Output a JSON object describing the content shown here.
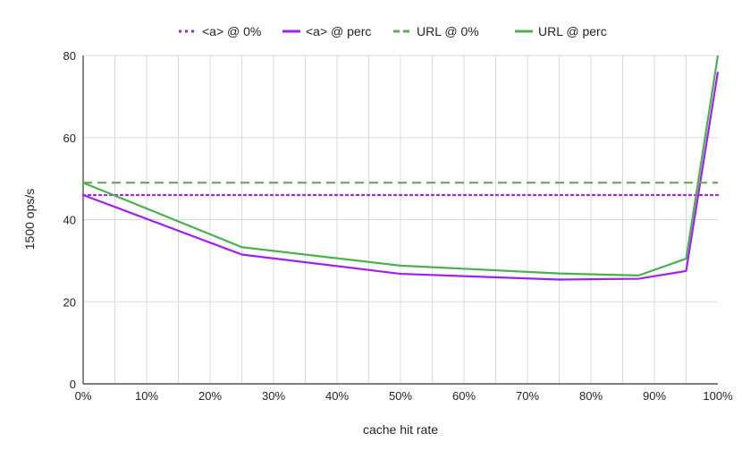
{
  "chart_data": {
    "type": "line",
    "title": "",
    "xlabel": "cache hit rate",
    "ylabel": "1500 ops/s",
    "xlim": [
      0,
      100
    ],
    "ylim": [
      0,
      80
    ],
    "x_ticks": [
      0,
      10,
      20,
      30,
      40,
      50,
      60,
      70,
      80,
      90,
      100
    ],
    "x_tick_labels": [
      "0%",
      "10%",
      "20%",
      "30%",
      "40%",
      "50%",
      "60%",
      "70%",
      "80%",
      "90%",
      "100%"
    ],
    "y_ticks": [
      0,
      20,
      40,
      60,
      80
    ],
    "y_tick_labels": [
      "0",
      "20",
      "40",
      "60",
      "80"
    ],
    "grid": true,
    "legend_position": "top",
    "series": [
      {
        "name": "<a> @ 0%",
        "color": "#a020f0",
        "style": "dotted",
        "x": [
          0,
          100
        ],
        "y": [
          46,
          46
        ]
      },
      {
        "name": "<a> @ perc",
        "color": "#a020f0",
        "style": "solid",
        "x": [
          0,
          25,
          50,
          75,
          87.5,
          95,
          100
        ],
        "y": [
          46,
          31.5,
          26.8,
          25.4,
          25.6,
          27.5,
          76
        ]
      },
      {
        "name": "URL @ 0%",
        "color": "#6aa84f",
        "style": "dashed",
        "x": [
          0,
          100
        ],
        "y": [
          49,
          49
        ]
      },
      {
        "name": "URL @ perc",
        "color": "#4caf50",
        "style": "solid",
        "x": [
          0,
          25,
          50,
          75,
          87.5,
          95,
          100
        ],
        "y": [
          49,
          33.3,
          28.8,
          26.9,
          26.4,
          30.5,
          80
        ]
      }
    ]
  }
}
